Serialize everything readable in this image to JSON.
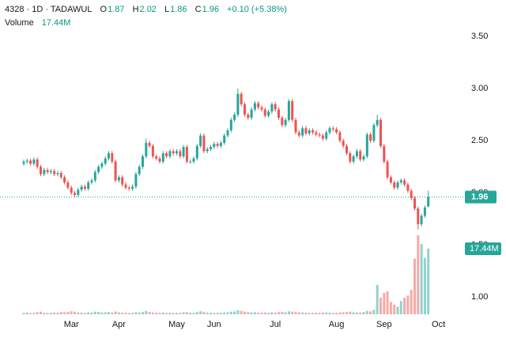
{
  "chart_data": {
    "type": "candlestick",
    "symbol": "4328 · 1D · TADAWUL",
    "ohlc_labels": [
      "O",
      "H",
      "L",
      "C"
    ],
    "change_label": "+0.10 (+5.38%)",
    "volume_title": "Volume",
    "volume_label": "17.44M",
    "up_color": "#26a69a",
    "down_color": "#ef5350",
    "ylim": [
      0.82,
      3.85
    ],
    "yticks": [
      {
        "value": 1,
        "label": "1.00"
      },
      {
        "value": 1.5,
        "label": "1.50"
      },
      {
        "value": 2,
        "label": "2.00"
      },
      {
        "value": 2.5,
        "label": "2.50"
      },
      {
        "value": 3,
        "label": "3.00"
      },
      {
        "value": 3.5,
        "label": "3.50"
      }
    ],
    "grid": false,
    "categories": [
      null,
      null,
      null,
      null,
      null,
      null,
      null,
      null,
      null,
      null,
      null,
      null,
      null,
      null,
      "Mar",
      null,
      null,
      null,
      null,
      null,
      null,
      null,
      null,
      null,
      null,
      null,
      null,
      null,
      "Apr",
      null,
      null,
      null,
      null,
      null,
      null,
      null,
      null,
      null,
      null,
      null,
      null,
      null,
      null,
      null,
      null,
      "May",
      null,
      null,
      null,
      null,
      null,
      null,
      null,
      null,
      null,
      null,
      "Jun",
      null,
      null,
      null,
      null,
      null,
      null,
      null,
      null,
      null,
      null,
      null,
      null,
      null,
      null,
      null,
      null,
      null,
      "Jul",
      null,
      null,
      null,
      null,
      null,
      null,
      null,
      null,
      null,
      null,
      null,
      null,
      null,
      null,
      null,
      null,
      null,
      "Aug",
      null,
      null,
      null,
      null,
      null,
      null,
      null,
      null,
      null,
      null,
      null,
      null,
      null,
      "Sep",
      null,
      null,
      null,
      null,
      null,
      null,
      null,
      null,
      null,
      null,
      null,
      null,
      null,
      null,
      null,
      "Oct"
    ],
    "open": [
      2.28,
      2.3,
      2.31,
      2.28,
      2.32,
      2.25,
      2.18,
      2.22,
      2.2,
      2.21,
      2.18,
      2.19,
      2.15,
      2.1,
      2.05,
      2.0,
      1.98,
      2.03,
      2.06,
      2.04,
      2.1,
      2.12,
      2.2,
      2.25,
      2.28,
      2.33,
      2.38,
      2.3,
      2.12,
      2.15,
      2.08,
      2.05,
      2.04,
      2.06,
      2.18,
      2.25,
      2.35,
      2.48,
      2.45,
      2.35,
      2.33,
      2.3,
      2.38,
      2.35,
      2.4,
      2.38,
      2.4,
      2.35,
      2.44,
      2.3,
      2.3,
      2.33,
      2.45,
      2.55,
      2.4,
      2.42,
      2.44,
      2.47,
      2.45,
      2.48,
      2.55,
      2.6,
      2.7,
      2.75,
      2.95,
      2.85,
      2.75,
      2.72,
      2.8,
      2.86,
      2.82,
      2.8,
      2.74,
      2.78,
      2.85,
      2.8,
      2.72,
      2.65,
      2.7,
      2.88,
      2.7,
      2.58,
      2.55,
      2.62,
      2.57,
      2.6,
      2.58,
      2.56,
      2.55,
      2.52,
      2.58,
      2.62,
      2.61,
      2.58,
      2.5,
      2.45,
      2.38,
      2.3,
      2.35,
      2.4,
      2.32,
      2.35,
      2.56,
      2.5,
      2.65,
      2.7,
      2.45,
      2.3,
      2.15,
      2.1,
      2.05,
      2.1,
      2.12,
      2.08,
      2.02,
      1.95,
      1.85,
      1.7,
      1.78,
      1.87,
      null,
      null,
      null
    ],
    "high": [
      2.32,
      2.33,
      2.33,
      2.34,
      2.34,
      2.27,
      2.24,
      2.24,
      2.23,
      2.23,
      2.21,
      2.21,
      2.17,
      2.12,
      2.07,
      2.02,
      2.05,
      2.08,
      2.08,
      2.12,
      2.14,
      2.22,
      2.27,
      2.3,
      2.35,
      2.4,
      2.4,
      2.32,
      2.17,
      2.17,
      2.1,
      2.07,
      2.08,
      2.2,
      2.27,
      2.37,
      2.52,
      2.5,
      2.47,
      2.37,
      2.35,
      2.4,
      2.4,
      2.42,
      2.42,
      2.42,
      2.42,
      2.46,
      2.46,
      2.32,
      2.35,
      2.47,
      2.57,
      2.57,
      2.44,
      2.46,
      2.49,
      2.49,
      2.5,
      2.57,
      2.62,
      2.72,
      2.77,
      3.0,
      2.97,
      2.87,
      2.77,
      2.82,
      2.88,
      2.88,
      2.84,
      2.82,
      2.8,
      2.87,
      2.87,
      2.82,
      2.74,
      2.72,
      2.9,
      2.9,
      2.72,
      2.6,
      2.64,
      2.64,
      2.62,
      2.62,
      2.6,
      2.58,
      2.57,
      2.6,
      2.64,
      2.64,
      2.63,
      2.6,
      2.52,
      2.47,
      2.4,
      2.37,
      2.42,
      2.42,
      2.37,
      2.58,
      2.58,
      2.67,
      2.75,
      2.72,
      2.47,
      2.32,
      2.17,
      2.12,
      2.12,
      2.14,
      2.14,
      2.1,
      2.04,
      1.97,
      1.87,
      1.8,
      1.88,
      2.02,
      null,
      null,
      null
    ],
    "low": [
      2.26,
      2.28,
      2.26,
      2.26,
      2.23,
      2.16,
      2.16,
      2.18,
      2.18,
      2.16,
      2.16,
      2.13,
      2.08,
      2.03,
      1.98,
      1.96,
      1.96,
      2.01,
      2.02,
      2.02,
      2.08,
      2.1,
      2.18,
      2.23,
      2.26,
      2.31,
      2.28,
      2.1,
      2.1,
      2.06,
      2.03,
      2.02,
      2.02,
      2.04,
      2.16,
      2.23,
      2.33,
      2.43,
      2.33,
      2.31,
      2.28,
      2.28,
      2.33,
      2.33,
      2.36,
      2.36,
      2.33,
      2.33,
      2.28,
      2.28,
      2.28,
      2.31,
      2.43,
      2.38,
      2.38,
      2.4,
      2.42,
      2.43,
      2.43,
      2.46,
      2.53,
      2.58,
      2.68,
      2.73,
      2.83,
      2.73,
      2.7,
      2.7,
      2.78,
      2.8,
      2.78,
      2.72,
      2.72,
      2.76,
      2.78,
      2.7,
      2.63,
      2.63,
      2.68,
      2.68,
      2.56,
      2.53,
      2.53,
      2.55,
      2.55,
      2.56,
      2.54,
      2.53,
      2.5,
      2.5,
      2.56,
      2.59,
      2.56,
      2.48,
      2.43,
      2.36,
      2.28,
      2.28,
      2.33,
      2.3,
      2.3,
      2.33,
      2.48,
      2.48,
      2.63,
      2.43,
      2.28,
      2.13,
      2.08,
      2.03,
      2.03,
      2.08,
      2.06,
      2.0,
      1.93,
      1.83,
      1.65,
      1.68,
      1.76,
      1.86,
      null,
      null,
      null
    ],
    "close": [
      2.3,
      2.31,
      2.28,
      2.32,
      2.25,
      2.18,
      2.22,
      2.2,
      2.21,
      2.18,
      2.19,
      2.15,
      2.1,
      2.05,
      2.0,
      1.98,
      2.03,
      2.06,
      2.04,
      2.1,
      2.12,
      2.2,
      2.25,
      2.28,
      2.33,
      2.38,
      2.3,
      2.12,
      2.15,
      2.08,
      2.05,
      2.04,
      2.06,
      2.18,
      2.25,
      2.35,
      2.48,
      2.45,
      2.35,
      2.33,
      2.3,
      2.38,
      2.35,
      2.4,
      2.38,
      2.4,
      2.35,
      2.44,
      2.3,
      2.3,
      2.33,
      2.45,
      2.55,
      2.4,
      2.42,
      2.44,
      2.47,
      2.45,
      2.48,
      2.55,
      2.6,
      2.7,
      2.75,
      2.95,
      2.85,
      2.75,
      2.72,
      2.8,
      2.86,
      2.82,
      2.8,
      2.74,
      2.78,
      2.85,
      2.8,
      2.72,
      2.65,
      2.7,
      2.88,
      2.7,
      2.58,
      2.55,
      2.62,
      2.57,
      2.6,
      2.58,
      2.56,
      2.55,
      2.52,
      2.58,
      2.62,
      2.61,
      2.58,
      2.5,
      2.45,
      2.38,
      2.3,
      2.35,
      2.4,
      2.32,
      2.35,
      2.56,
      2.5,
      2.65,
      2.7,
      2.45,
      2.3,
      2.15,
      2.1,
      2.05,
      2.1,
      2.12,
      2.08,
      2.02,
      1.95,
      1.85,
      1.7,
      1.78,
      1.86,
      1.96,
      null,
      null,
      null
    ],
    "volume": [
      400000,
      500000,
      350000,
      450000,
      600000,
      700000,
      400000,
      380000,
      420000,
      500000,
      450000,
      600000,
      550000,
      650000,
      800000,
      700000,
      500000,
      450000,
      400000,
      520000,
      480000,
      700000,
      650000,
      500000,
      550000,
      600000,
      500000,
      750000,
      500000,
      450000,
      400000,
      380000,
      420000,
      550000,
      500000,
      600000,
      900000,
      600000,
      500000,
      450000,
      420000,
      500000,
      400000,
      450000,
      380000,
      420000,
      400000,
      550000,
      600000,
      450000,
      400000,
      600000,
      800000,
      650000,
      450000,
      420000,
      400000,
      450000,
      420000,
      500000,
      550000,
      700000,
      750000,
      1100000,
      900000,
      700000,
      600000,
      500000,
      550000,
      480000,
      450000,
      500000,
      420000,
      550000,
      480000,
      600000,
      650000,
      500000,
      800000,
      700000,
      600000,
      550000,
      500000,
      450000,
      420000,
      400000,
      450000,
      420000,
      480000,
      500000,
      450000,
      400000,
      420000,
      500000,
      550000,
      600000,
      700000,
      550000,
      500000,
      480000,
      600000,
      900000,
      800000,
      1200000,
      7800000,
      4400000,
      5700000,
      6100000,
      3300000,
      2600000,
      2000000,
      3500000,
      4400000,
      5000000,
      6500000,
      14800000,
      21000000,
      18700000,
      15000000,
      17440000,
      null,
      null,
      null
    ]
  }
}
